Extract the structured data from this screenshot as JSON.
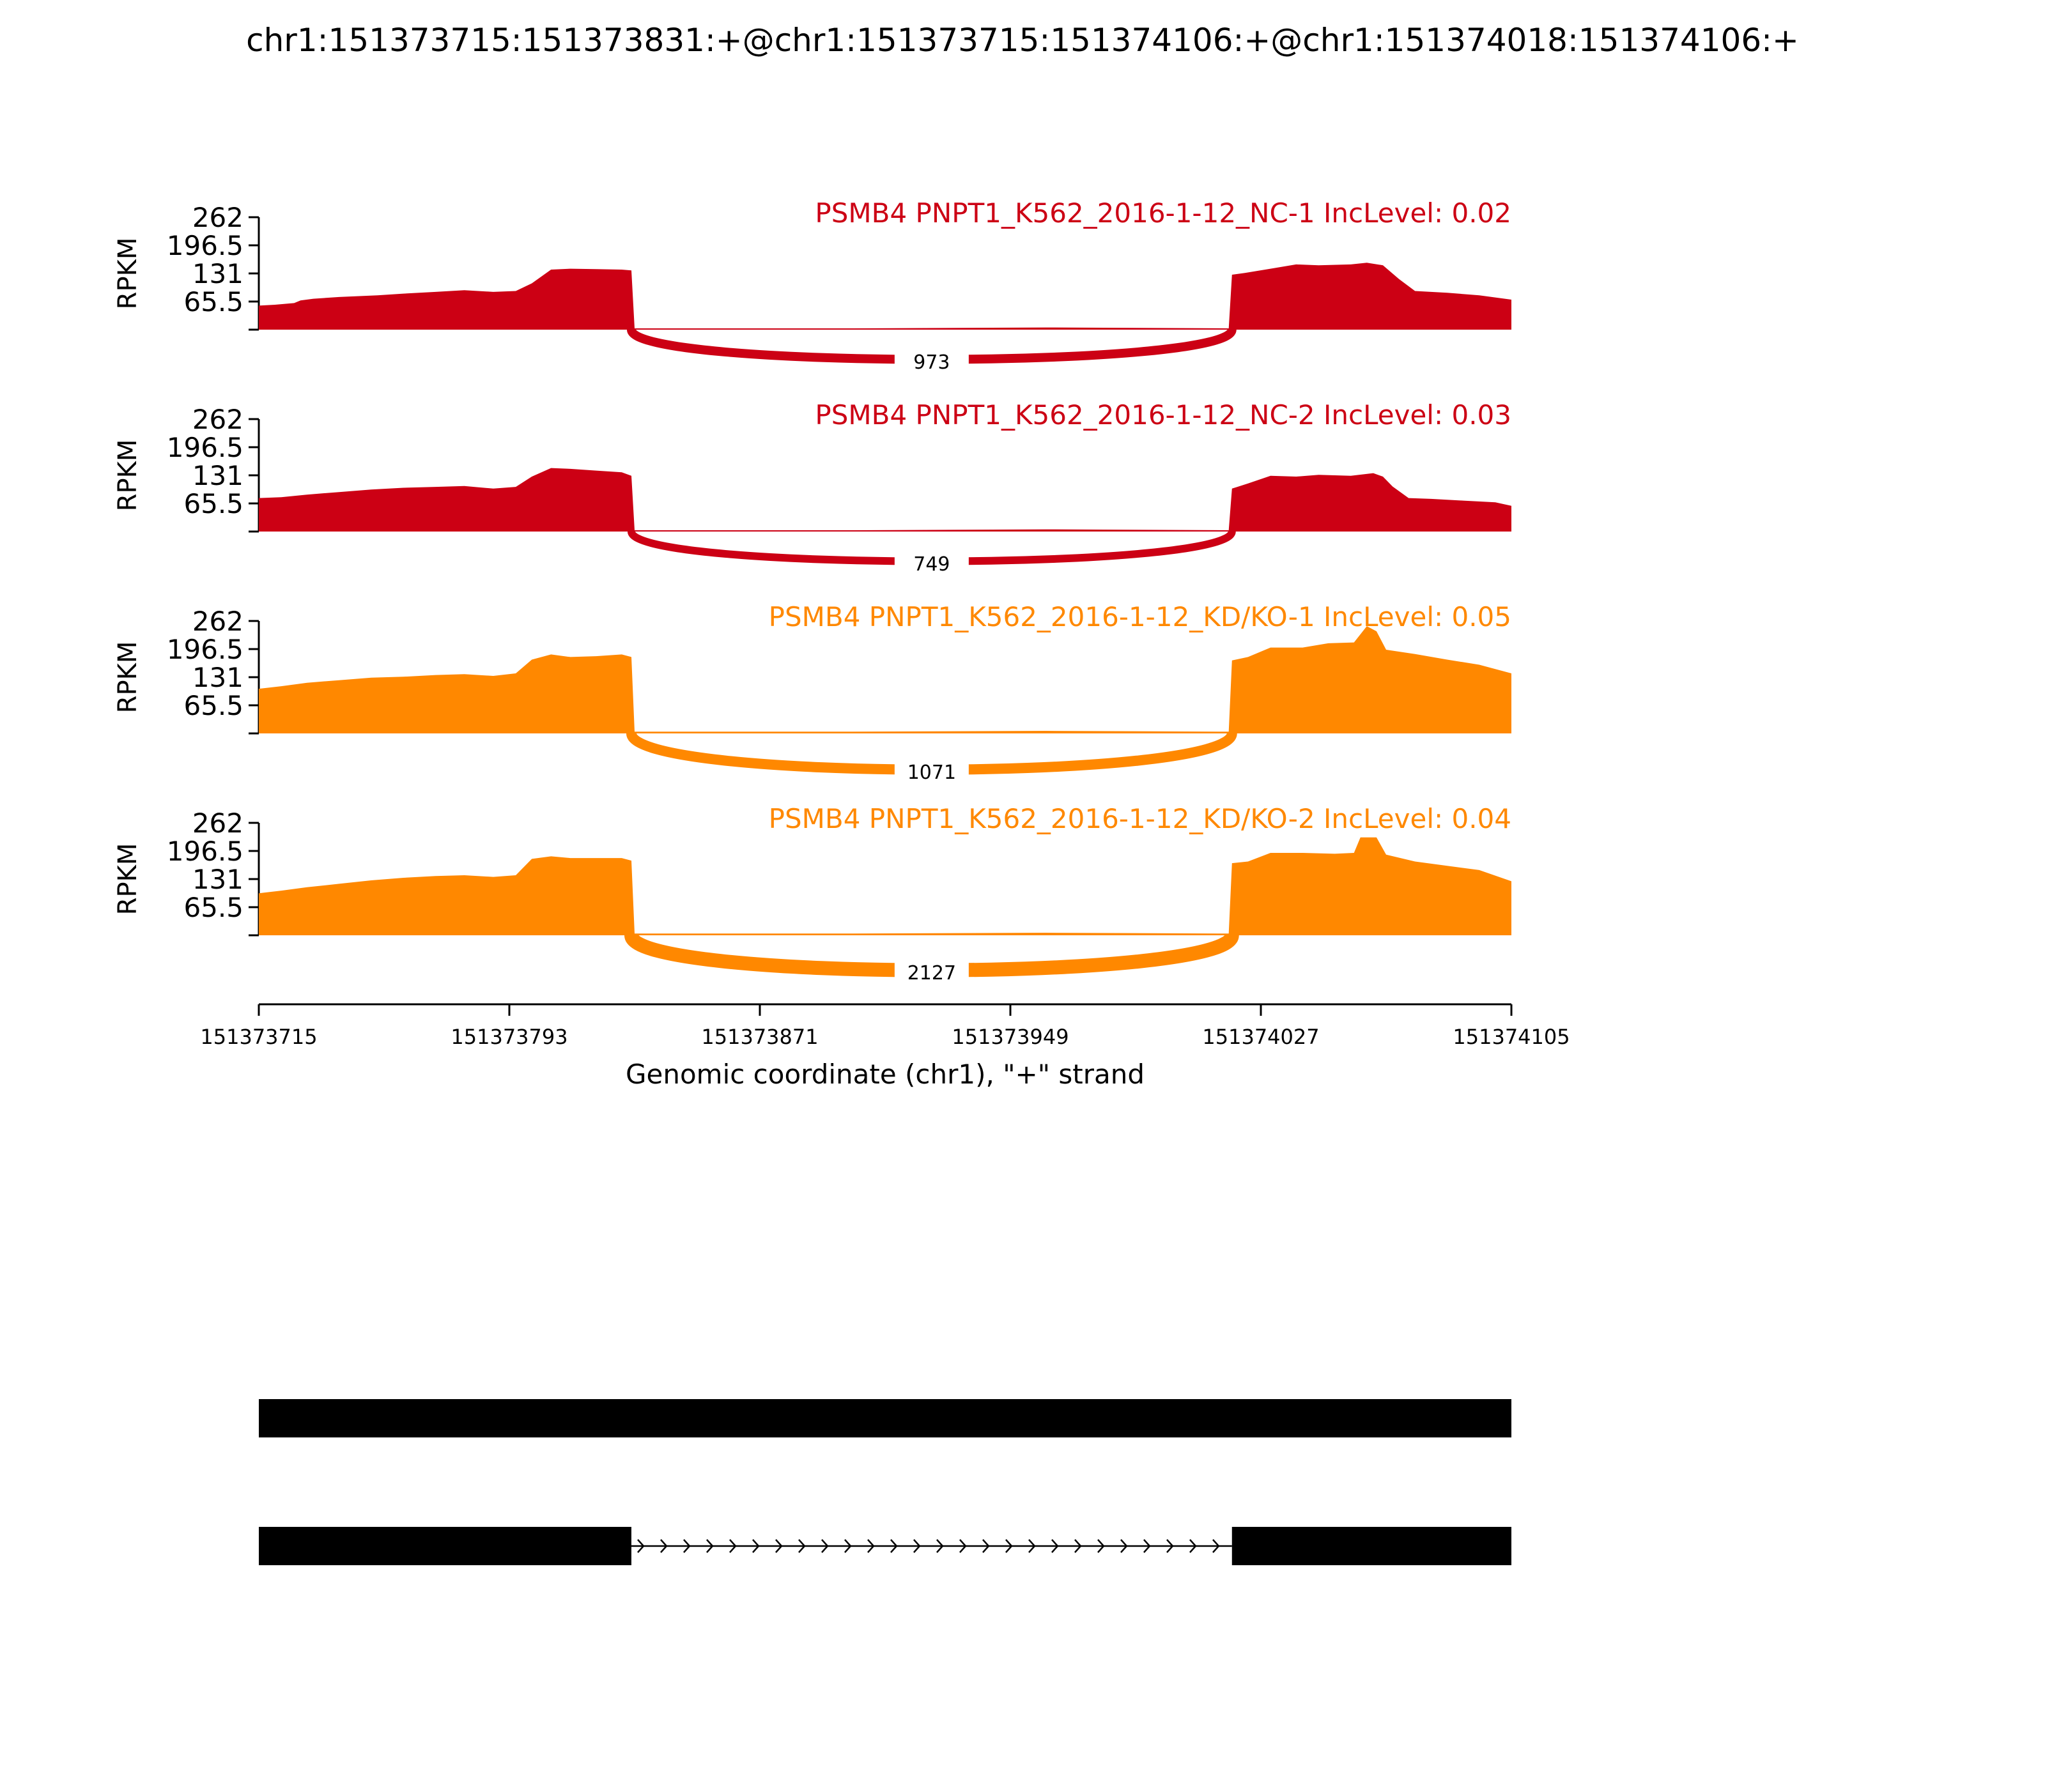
{
  "title": "chr1:151373715:151373831:+@chr1:151373715:151374106:+@chr1:151374018:151374106:+",
  "colors": {
    "nc": "#cc0014",
    "kd": "#ff8800",
    "axis": "#000000",
    "text": "#000000"
  },
  "chart_data": {
    "type": "area",
    "subtype": "sashimi",
    "title": "chr1:151373715:151373831:+@chr1:151373715:151374106:+@chr1:151374018:151374106:+",
    "xlabel": "Genomic coordinate (chr1), \"+\" strand",
    "xlim": [
      151373715,
      151374105
    ],
    "xticks": [
      151373715,
      151373793,
      151373871,
      151373949,
      151374027,
      151374105
    ],
    "xticklabels": [
      "151373715",
      "151373793",
      "151373871",
      "151373949",
      "151374027",
      "151374105"
    ],
    "ylabel": "RPKM",
    "ylim": [
      0,
      262
    ],
    "yticks": [
      0,
      65.5,
      131,
      196.5,
      262
    ],
    "yticklabels": [
      "",
      "65.5",
      "131",
      "196.5",
      "262"
    ],
    "junction": {
      "start": 151373831,
      "end": 151374018
    },
    "tracks": [
      {
        "label": "PSMB4 PNPT1_K562_2016-1-12_NC-1 IncLevel: 0.02",
        "group": "nc",
        "junction_count": "973",
        "coverage": [
          [
            151373715,
            56
          ],
          [
            151373720,
            58
          ],
          [
            151373726,
            62
          ],
          [
            151373728,
            68
          ],
          [
            151373732,
            72
          ],
          [
            151373740,
            76
          ],
          [
            151373752,
            80
          ],
          [
            151373760,
            84
          ],
          [
            151373770,
            88
          ],
          [
            151373779,
            92
          ],
          [
            151373788,
            88
          ],
          [
            151373795,
            90
          ],
          [
            151373800,
            108
          ],
          [
            151373806,
            140
          ],
          [
            151373812,
            142
          ],
          [
            151373820,
            141
          ],
          [
            151373828,
            140
          ],
          [
            151373831,
            138
          ],
          [
            151373832,
            3
          ],
          [
            151373900,
            3
          ],
          [
            151373960,
            5
          ],
          [
            151374017,
            3
          ],
          [
            151374018,
            128
          ],
          [
            151374022,
            132
          ],
          [
            151374030,
            142
          ],
          [
            151374038,
            152
          ],
          [
            151374045,
            150
          ],
          [
            151374055,
            152
          ],
          [
            151374060,
            156
          ],
          [
            151374065,
            150
          ],
          [
            151374070,
            118
          ],
          [
            151374075,
            90
          ],
          [
            151374085,
            86
          ],
          [
            151374095,
            80
          ],
          [
            151374105,
            70
          ]
        ]
      },
      {
        "label": "PSMB4 PNPT1_K562_2016-1-12_NC-2 IncLevel: 0.03",
        "group": "nc",
        "junction_count": "749",
        "coverage": [
          [
            151373715,
            78
          ],
          [
            151373722,
            80
          ],
          [
            151373730,
            86
          ],
          [
            151373740,
            92
          ],
          [
            151373750,
            98
          ],
          [
            151373760,
            102
          ],
          [
            151373770,
            104
          ],
          [
            151373779,
            106
          ],
          [
            151373788,
            100
          ],
          [
            151373795,
            104
          ],
          [
            151373800,
            128
          ],
          [
            151373806,
            148
          ],
          [
            151373812,
            146
          ],
          [
            151373820,
            142
          ],
          [
            151373828,
            138
          ],
          [
            151373831,
            130
          ],
          [
            151373832,
            3
          ],
          [
            151373900,
            3
          ],
          [
            151373960,
            5
          ],
          [
            151374017,
            3
          ],
          [
            151374018,
            100
          ],
          [
            151374023,
            112
          ],
          [
            151374030,
            130
          ],
          [
            151374038,
            128
          ],
          [
            151374045,
            132
          ],
          [
            151374055,
            130
          ],
          [
            151374062,
            136
          ],
          [
            151374065,
            128
          ],
          [
            151374068,
            105
          ],
          [
            151374073,
            78
          ],
          [
            151374080,
            76
          ],
          [
            151374090,
            72
          ],
          [
            151374100,
            68
          ],
          [
            151374105,
            60
          ]
        ]
      },
      {
        "label": "PSMB4 PNPT1_K562_2016-1-12_KD/KO-1 IncLevel: 0.05",
        "group": "kd",
        "junction_count": "1071",
        "coverage": [
          [
            151373715,
            104
          ],
          [
            151373722,
            110
          ],
          [
            151373730,
            118
          ],
          [
            151373740,
            124
          ],
          [
            151373750,
            130
          ],
          [
            151373760,
            132
          ],
          [
            151373770,
            136
          ],
          [
            151373779,
            138
          ],
          [
            151373788,
            134
          ],
          [
            151373795,
            140
          ],
          [
            151373800,
            172
          ],
          [
            151373806,
            184
          ],
          [
            151373812,
            178
          ],
          [
            151373820,
            180
          ],
          [
            151373828,
            184
          ],
          [
            151373831,
            178
          ],
          [
            151373832,
            4
          ],
          [
            151373900,
            4
          ],
          [
            151373960,
            6
          ],
          [
            151374017,
            4
          ],
          [
            151374018,
            170
          ],
          [
            151374023,
            178
          ],
          [
            151374030,
            200
          ],
          [
            151374040,
            200
          ],
          [
            151374048,
            210
          ],
          [
            151374056,
            212
          ],
          [
            151374060,
            250
          ],
          [
            151374063,
            238
          ],
          [
            151374066,
            195
          ],
          [
            151374075,
            185
          ],
          [
            151374085,
            172
          ],
          [
            151374095,
            160
          ],
          [
            151374105,
            140
          ]
        ]
      },
      {
        "label": "PSMB4 PNPT1_K562_2016-1-12_KD/KO-2 IncLevel: 0.04",
        "group": "kd",
        "junction_count": "2127",
        "coverage": [
          [
            151373715,
            98
          ],
          [
            151373722,
            104
          ],
          [
            151373730,
            112
          ],
          [
            151373740,
            120
          ],
          [
            151373750,
            128
          ],
          [
            151373760,
            134
          ],
          [
            151373770,
            138
          ],
          [
            151373779,
            140
          ],
          [
            151373788,
            136
          ],
          [
            151373795,
            140
          ],
          [
            151373800,
            178
          ],
          [
            151373806,
            184
          ],
          [
            151373812,
            180
          ],
          [
            151373820,
            180
          ],
          [
            151373828,
            180
          ],
          [
            151373831,
            174
          ],
          [
            151373832,
            4
          ],
          [
            151373900,
            4
          ],
          [
            151373960,
            6
          ],
          [
            151374017,
            4
          ],
          [
            151374018,
            168
          ],
          [
            151374023,
            172
          ],
          [
            151374030,
            192
          ],
          [
            151374040,
            192
          ],
          [
            151374050,
            190
          ],
          [
            151374056,
            192
          ],
          [
            151374058,
            228
          ],
          [
            151374063,
            228
          ],
          [
            151374066,
            188
          ],
          [
            151374075,
            172
          ],
          [
            151374085,
            162
          ],
          [
            151374095,
            152
          ],
          [
            151374105,
            126
          ]
        ]
      }
    ],
    "isoforms": [
      {
        "exons": [
          [
            151373715,
            151374105
          ]
        ]
      },
      {
        "exons": [
          [
            151373715,
            151373831
          ],
          [
            151374018,
            151374105
          ]
        ]
      }
    ]
  }
}
